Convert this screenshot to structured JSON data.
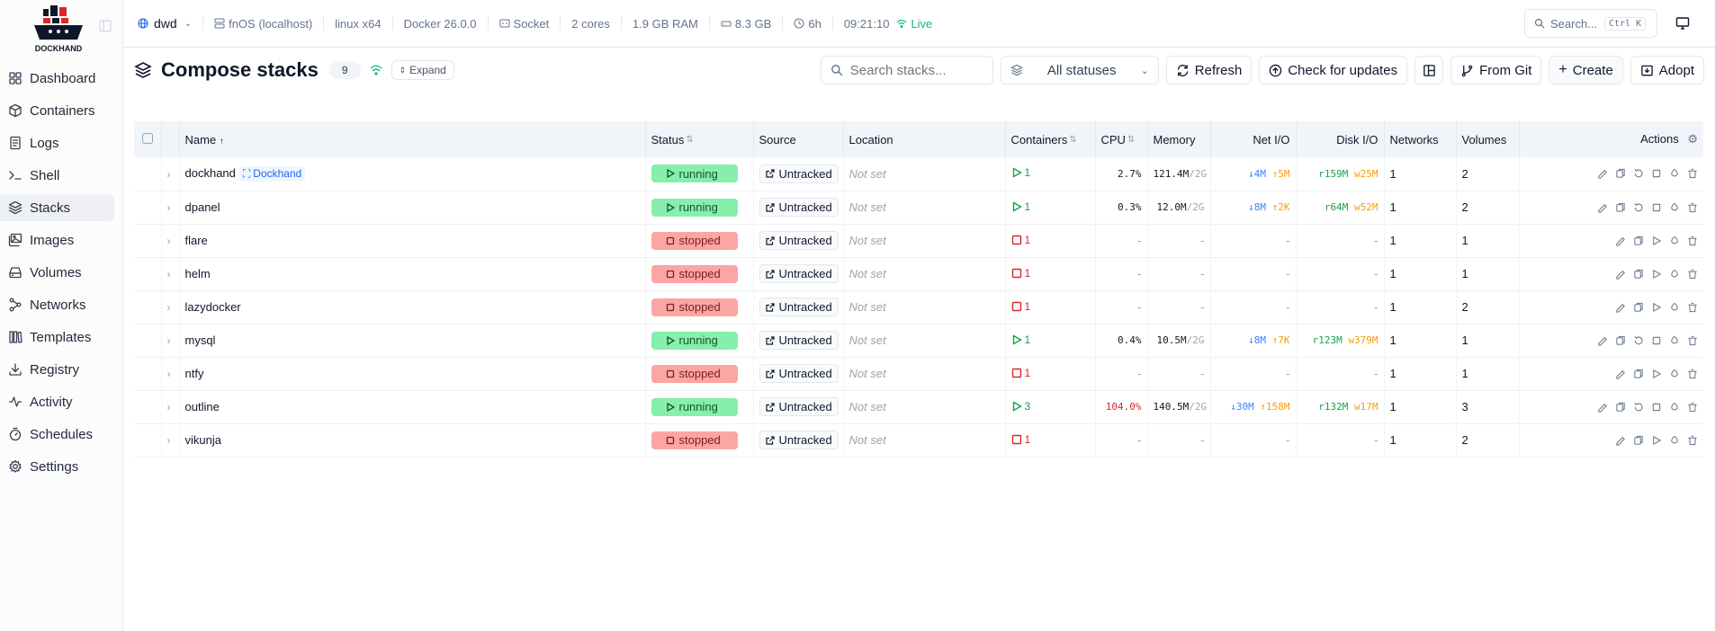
{
  "sidebar": {
    "logo_text": "DOCKHAND",
    "items": [
      {
        "label": "Dashboard",
        "icon": "dashboard-icon"
      },
      {
        "label": "Containers",
        "icon": "box-icon"
      },
      {
        "label": "Logs",
        "icon": "logs-icon"
      },
      {
        "label": "Shell",
        "icon": "terminal-icon"
      },
      {
        "label": "Stacks",
        "icon": "layers-icon",
        "active": true
      },
      {
        "label": "Images",
        "icon": "images-icon"
      },
      {
        "label": "Volumes",
        "icon": "drive-icon"
      },
      {
        "label": "Networks",
        "icon": "network-icon"
      },
      {
        "label": "Templates",
        "icon": "library-icon"
      },
      {
        "label": "Registry",
        "icon": "download-icon"
      },
      {
        "label": "Activity",
        "icon": "activity-icon"
      },
      {
        "label": "Schedules",
        "icon": "timer-icon"
      },
      {
        "label": "Settings",
        "icon": "gear-icon"
      }
    ]
  },
  "topbar": {
    "env": "dwd",
    "host": "fnOS (localhost)",
    "platform": "linux x64",
    "docker": "Docker 26.0.0",
    "conn": "Socket",
    "cores": "2 cores",
    "ram": "1.9 GB RAM",
    "disk": "8.3 GB",
    "uptime": "6h",
    "time": "09:21:10",
    "live": "Live",
    "search_label": "Search...",
    "search_kbd": "Ctrl K"
  },
  "page": {
    "title": "Compose stacks",
    "count": "9",
    "expand": "Expand",
    "search_placeholder": "Search stacks...",
    "status_filter": "All statuses",
    "refresh": "Refresh",
    "check_updates": "Check for updates",
    "from_git": "From Git",
    "create": "Create",
    "adopt": "Adopt"
  },
  "table": {
    "headers": {
      "name": "Name",
      "status": "Status",
      "source": "Source",
      "location": "Location",
      "containers": "Containers",
      "cpu": "CPU",
      "memory": "Memory",
      "netio": "Net I/O",
      "diskio": "Disk I/O",
      "networks": "Networks",
      "volumes": "Volumes",
      "actions": "Actions"
    },
    "rows": [
      {
        "name": "dockhand",
        "owner": "Dockhand",
        "status": "running",
        "source": "Untracked",
        "location": "Not set",
        "containers": "1",
        "cpu": "2.7%",
        "cpu_hi": false,
        "mem": "121.4M",
        "mem_total": "/2G",
        "net_down": "↓4M",
        "net_up": "↑5M",
        "disk_r": "r159M",
        "disk_w": "w25M",
        "networks": "1",
        "volumes": "2"
      },
      {
        "name": "dpanel",
        "owner": "",
        "status": "running",
        "source": "Untracked",
        "location": "Not set",
        "containers": "1",
        "cpu": "0.3%",
        "cpu_hi": false,
        "mem": "12.0M",
        "mem_total": "/2G",
        "net_down": "↓8M",
        "net_up": "↑2K",
        "disk_r": "r64M",
        "disk_w": "w52M",
        "networks": "1",
        "volumes": "2"
      },
      {
        "name": "flare",
        "owner": "",
        "status": "stopped",
        "source": "Untracked",
        "location": "Not set",
        "containers": "1",
        "cpu": "-",
        "mem": "-",
        "net": "-",
        "disk": "-",
        "networks": "1",
        "volumes": "1"
      },
      {
        "name": "helm",
        "owner": "",
        "status": "stopped",
        "source": "Untracked",
        "location": "Not set",
        "containers": "1",
        "cpu": "-",
        "mem": "-",
        "net": "-",
        "disk": "-",
        "networks": "1",
        "volumes": "1"
      },
      {
        "name": "lazydocker",
        "owner": "",
        "status": "stopped",
        "source": "Untracked",
        "location": "Not set",
        "containers": "1",
        "cpu": "-",
        "mem": "-",
        "net": "-",
        "disk": "-",
        "networks": "1",
        "volumes": "2"
      },
      {
        "name": "mysql",
        "owner": "",
        "status": "running",
        "source": "Untracked",
        "location": "Not set",
        "containers": "1",
        "cpu": "0.4%",
        "cpu_hi": false,
        "mem": "10.5M",
        "mem_total": "/2G",
        "net_down": "↓8M",
        "net_up": "↑7K",
        "disk_r": "r123M",
        "disk_w": "w379M",
        "networks": "1",
        "volumes": "1"
      },
      {
        "name": "ntfy",
        "owner": "",
        "status": "stopped",
        "source": "Untracked",
        "location": "Not set",
        "containers": "1",
        "cpu": "-",
        "mem": "-",
        "net": "-",
        "disk": "-",
        "networks": "1",
        "volumes": "1"
      },
      {
        "name": "outline",
        "owner": "",
        "status": "running",
        "source": "Untracked",
        "location": "Not set",
        "containers": "3",
        "cpu": "104.0%",
        "cpu_hi": true,
        "mem": "140.5M",
        "mem_total": "/2G",
        "net_down": "↓30M",
        "net_up": "↑158M",
        "disk_r": "r132M",
        "disk_w": "w17M",
        "networks": "1",
        "volumes": "3"
      },
      {
        "name": "vikunja",
        "owner": "",
        "status": "stopped",
        "source": "Untracked",
        "location": "Not set",
        "containers": "1",
        "cpu": "-",
        "mem": "-",
        "net": "-",
        "disk": "-",
        "networks": "1",
        "volumes": "2"
      }
    ]
  }
}
